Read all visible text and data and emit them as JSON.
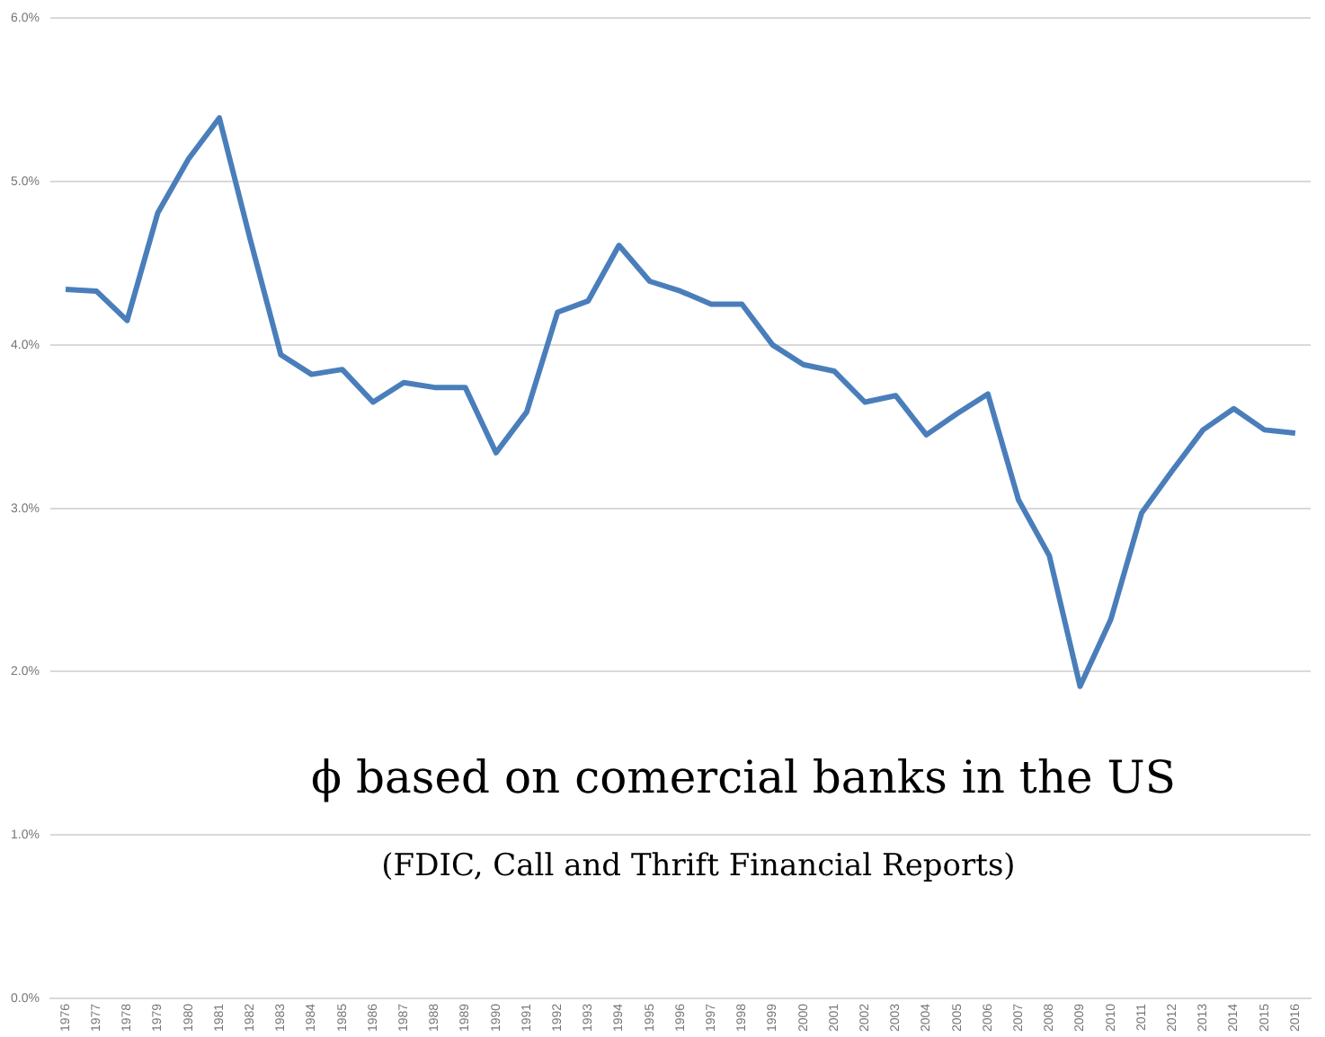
{
  "chart_data": {
    "type": "line",
    "categories": [
      "1976",
      "1977",
      "1978",
      "1979",
      "1980",
      "1981",
      "1982",
      "1983",
      "1984",
      "1985",
      "1986",
      "1987",
      "1988",
      "1989",
      "1990",
      "1991",
      "1992",
      "1993",
      "1994",
      "1995",
      "1996",
      "1997",
      "1998",
      "1999",
      "2000",
      "2001",
      "2002",
      "2003",
      "2004",
      "2005",
      "2006",
      "2007",
      "2008",
      "2009",
      "2010",
      "2011",
      "2012",
      "2013",
      "2014",
      "2015",
      "2016"
    ],
    "series": [
      {
        "color": "#4a7ebb",
        "values": [
          4.34,
          4.33,
          4.15,
          4.81,
          5.14,
          5.39,
          4.65,
          3.94,
          3.82,
          3.85,
          3.65,
          3.77,
          3.74,
          3.74,
          3.34,
          3.59,
          4.2,
          4.27,
          4.61,
          4.39,
          4.33,
          4.25,
          4.25,
          4.0,
          3.88,
          3.84,
          3.65,
          3.69,
          3.45,
          3.58,
          3.7,
          3.05,
          2.71,
          1.91,
          2.32,
          2.97,
          3.23,
          3.48,
          3.61,
          3.48,
          3.46
        ]
      }
    ],
    "ylim": [
      0,
      6
    ],
    "yticks": [
      {
        "value": 0,
        "label": "0.0%"
      },
      {
        "value": 1,
        "label": "1.0%"
      },
      {
        "value": 2,
        "label": "2.0%"
      },
      {
        "value": 3,
        "label": "3.0%"
      },
      {
        "value": 4,
        "label": "4.0%"
      },
      {
        "value": 5,
        "label": "5.0%"
      },
      {
        "value": 6,
        "label": "6.0%"
      }
    ],
    "grid": "y",
    "legend": false,
    "marker": "none",
    "line_style": "solid",
    "annotations": [
      "ϕ based on comercial banks in the US",
      "(FDIC, Call and Thrift Financial Reports)"
    ]
  }
}
